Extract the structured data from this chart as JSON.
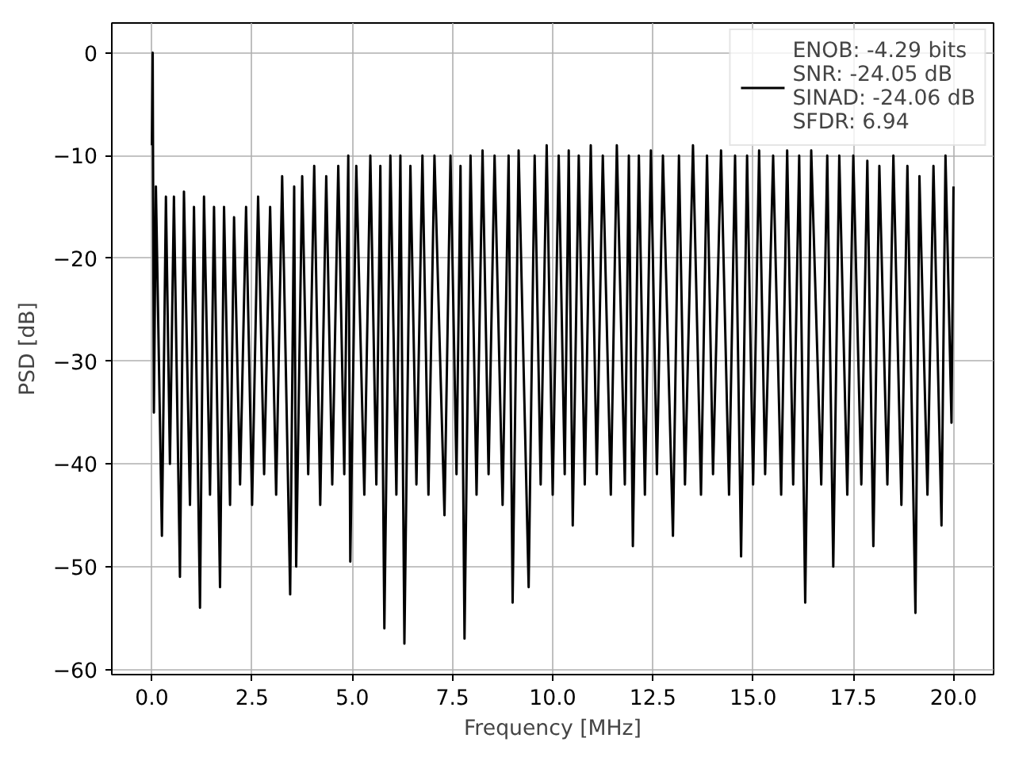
{
  "chart_data": {
    "type": "line",
    "xlabel": "Frequency [MHz]",
    "ylabel": "PSD [dB]",
    "xlim": [
      -1,
      21
    ],
    "ylim": [
      -60.5,
      2.9
    ],
    "xticks": [
      {
        "value": 0,
        "label": "0.0"
      },
      {
        "value": 2.5,
        "label": "2.5"
      },
      {
        "value": 5,
        "label": "5.0"
      },
      {
        "value": 7.5,
        "label": "7.5"
      },
      {
        "value": 10,
        "label": "10.0"
      },
      {
        "value": 12.5,
        "label": "12.5"
      },
      {
        "value": 15,
        "label": "15.0"
      },
      {
        "value": 17.5,
        "label": "17.5"
      },
      {
        "value": 20,
        "label": "20.0"
      }
    ],
    "yticks": [
      {
        "value": -60,
        "label": "−60"
      },
      {
        "value": -50,
        "label": "−50"
      },
      {
        "value": -40,
        "label": "−40"
      },
      {
        "value": -30,
        "label": "−30"
      },
      {
        "value": -20,
        "label": "−20"
      },
      {
        "value": -10,
        "label": "−10"
      },
      0
    ],
    "grid": true,
    "legend": "top right",
    "marker": "none",
    "line_style": "solid",
    "series": [
      {
        "name": "ENOB: -4.29 bits\nSNR: -24.05 dB\nSINAD: -24.06 dB\nSFDR: 6.94",
        "color": "#000000",
        "x": [
          0,
          0.02,
          0.05,
          0.1,
          0.25,
          0.35,
          0.45,
          0.55,
          0.7,
          0.8,
          0.95,
          1.05,
          1.2,
          1.3,
          1.45,
          1.55,
          1.7,
          1.8,
          1.95,
          2.05,
          2.2,
          2.35,
          2.5,
          2.65,
          2.8,
          2.95,
          3.1,
          3.25,
          3.45,
          3.55,
          3.6,
          3.75,
          3.9,
          4.05,
          4.2,
          4.35,
          4.5,
          4.65,
          4.8,
          4.9,
          4.95,
          5.1,
          5.3,
          5.45,
          5.6,
          5.7,
          5.8,
          5.95,
          6.1,
          6.2,
          6.3,
          6.45,
          6.6,
          6.75,
          6.9,
          7.05,
          7.3,
          7.45,
          7.6,
          7.7,
          7.8,
          7.95,
          8.1,
          8.25,
          8.4,
          8.55,
          8.75,
          8.9,
          9.0,
          9.15,
          9.4,
          9.55,
          9.7,
          9.85,
          10.0,
          10.15,
          10.3,
          10.4,
          10.5,
          10.65,
          10.8,
          10.95,
          11.1,
          11.25,
          11.45,
          11.6,
          11.8,
          11.9,
          12.0,
          12.15,
          12.3,
          12.45,
          12.6,
          12.75,
          13.0,
          13.15,
          13.3,
          13.5,
          13.7,
          13.85,
          14.0,
          14.2,
          14.4,
          14.55,
          14.7,
          14.85,
          15.0,
          15.15,
          15.3,
          15.5,
          15.7,
          15.85,
          16.0,
          16.15,
          16.3,
          16.45,
          16.7,
          16.85,
          17.0,
          17.15,
          17.35,
          17.5,
          17.7,
          17.85,
          18.0,
          18.15,
          18.35,
          18.5,
          18.7,
          18.85,
          19.05,
          19.15,
          19.35,
          19.5,
          19.7,
          19.8,
          19.95,
          20.0
        ],
        "values": [
          -9,
          0,
          -35,
          -13,
          -47,
          -14,
          -40,
          -14,
          -51,
          -13.5,
          -44,
          -15,
          -54,
          -14,
          -43,
          -15,
          -52,
          -15,
          -44,
          -16,
          -42,
          -15,
          -44,
          -14,
          -41,
          -15,
          -43,
          -12,
          -52.7,
          -13,
          -50,
          -12,
          -41,
          -11,
          -44,
          -12,
          -42,
          -11,
          -41,
          -10,
          -49.5,
          -11,
          -43,
          -10,
          -42,
          -11,
          -56,
          -10,
          -43,
          -10,
          -57.5,
          -11,
          -42,
          -10,
          -43,
          -10,
          -45,
          -10,
          -41,
          -11,
          -57,
          -10,
          -43,
          -9.5,
          -41,
          -10,
          -44,
          -10,
          -53.5,
          -9.5,
          -52,
          -10,
          -42,
          -9,
          -43,
          -10,
          -41,
          -9.5,
          -46,
          -10,
          -42,
          -9,
          -41,
          -10,
          -43,
          -9,
          -42,
          -10,
          -48,
          -10,
          -43,
          -9.5,
          -41,
          -10,
          -47,
          -10,
          -42,
          -9,
          -43,
          -10,
          -41,
          -9.5,
          -43,
          -10,
          -49,
          -10,
          -42,
          -9.5,
          -41,
          -10,
          -43,
          -9.5,
          -42,
          -10,
          -53.5,
          -9.5,
          -42,
          -10,
          -50,
          -10,
          -43,
          -10,
          -42,
          -10.5,
          -48,
          -11,
          -42,
          -10,
          -44,
          -11,
          -54.5,
          -12,
          -43,
          -11,
          -46,
          -10,
          -36,
          -13
        ]
      }
    ]
  }
}
